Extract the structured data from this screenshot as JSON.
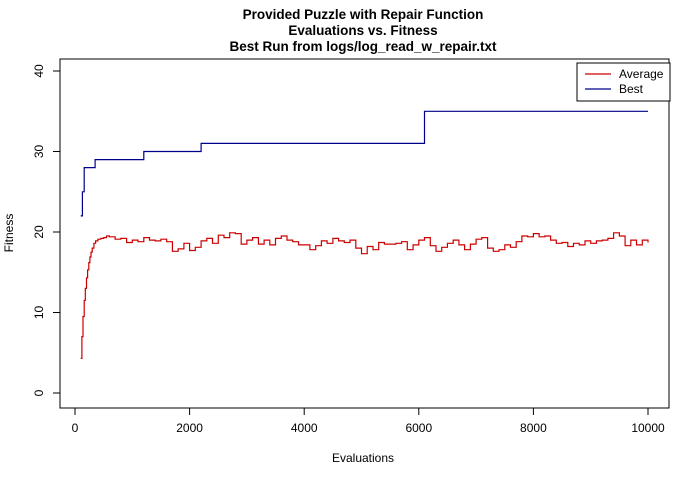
{
  "chart_data": {
    "type": "line",
    "title_lines": [
      "Provided Puzzle with Repair Function",
      "Evaluations vs. Fitness",
      "Best Run from logs/log_read_w_repair.txt"
    ],
    "xlabel": "Evaluations",
    "ylabel": "Fitness",
    "xlim": [
      0,
      10000
    ],
    "ylim": [
      0,
      40
    ],
    "x_ticks": [
      0,
      2000,
      4000,
      6000,
      8000,
      10000
    ],
    "y_ticks": [
      0,
      10,
      20,
      30,
      40
    ],
    "grid": false,
    "legend_position": "top-right",
    "series": [
      {
        "name": "Average",
        "color": "#cc0000",
        "style": "step",
        "x": [
          100,
          120,
          140,
          160,
          180,
          200,
          220,
          240,
          260,
          280,
          300,
          330,
          360,
          400,
          450,
          500,
          550,
          600,
          700,
          800,
          900,
          1000,
          1100,
          1200,
          1300,
          1400,
          1500,
          1600,
          1700,
          1800,
          1900,
          2000,
          2100,
          2200,
          2300,
          2400,
          2500,
          2600,
          2700,
          2800,
          2900,
          3000,
          3100,
          3200,
          3300,
          3400,
          3500,
          3600,
          3700,
          3800,
          3900,
          4000,
          4100,
          4200,
          4300,
          4400,
          4500,
          4600,
          4700,
          4800,
          4900,
          5000,
          5100,
          5200,
          5300,
          5400,
          5500,
          5600,
          5700,
          5800,
          5900,
          6000,
          6100,
          6200,
          6300,
          6400,
          6500,
          6600,
          6700,
          6800,
          6900,
          7000,
          7100,
          7200,
          7300,
          7400,
          7500,
          7600,
          7700,
          7800,
          7900,
          8000,
          8100,
          8200,
          8300,
          8400,
          8500,
          8600,
          8700,
          8800,
          8900,
          9000,
          9100,
          9200,
          9300,
          9400,
          9500,
          9600,
          9700,
          9800,
          9900,
          10000
        ],
        "y": [
          4.3,
          7.0,
          9.5,
          11.5,
          13.0,
          14.3,
          15.3,
          16.2,
          16.9,
          17.5,
          18.0,
          18.6,
          18.9,
          19.1,
          19.2,
          19.3,
          19.5,
          19.4,
          19.1,
          19.2,
          18.7,
          19.0,
          18.8,
          19.3,
          19.0,
          18.9,
          19.1,
          18.8,
          17.6,
          17.9,
          18.6,
          17.7,
          18.1,
          18.9,
          19.2,
          18.6,
          19.6,
          19.3,
          19.9,
          19.8,
          18.5,
          19.0,
          19.3,
          18.5,
          19.0,
          18.4,
          19.2,
          19.5,
          19.0,
          18.8,
          18.4,
          18.4,
          17.8,
          18.3,
          18.9,
          18.6,
          19.2,
          18.9,
          18.7,
          19.0,
          18.0,
          17.3,
          18.2,
          17.8,
          18.7,
          18.5,
          18.5,
          18.6,
          18.8,
          17.8,
          18.4,
          19.0,
          19.3,
          18.3,
          17.6,
          18.1,
          18.6,
          19.0,
          18.4,
          17.8,
          18.5,
          19.1,
          19.3,
          18.0,
          17.6,
          17.8,
          18.4,
          18.1,
          18.8,
          19.5,
          19.4,
          19.8,
          19.4,
          19.5,
          19.0,
          18.6,
          18.7,
          18.2,
          18.6,
          18.4,
          18.9,
          18.6,
          18.9,
          19.0,
          19.2,
          19.9,
          19.5,
          18.3,
          19.0,
          18.4,
          19.0,
          18.7
        ]
      },
      {
        "name": "Best",
        "color": "#00008b",
        "style": "step",
        "x": [
          100,
          130,
          160,
          200,
          350,
          1200,
          2200,
          6100,
          10000
        ],
        "y": [
          22,
          25,
          28,
          28,
          29,
          30,
          31,
          35,
          35
        ]
      }
    ]
  }
}
